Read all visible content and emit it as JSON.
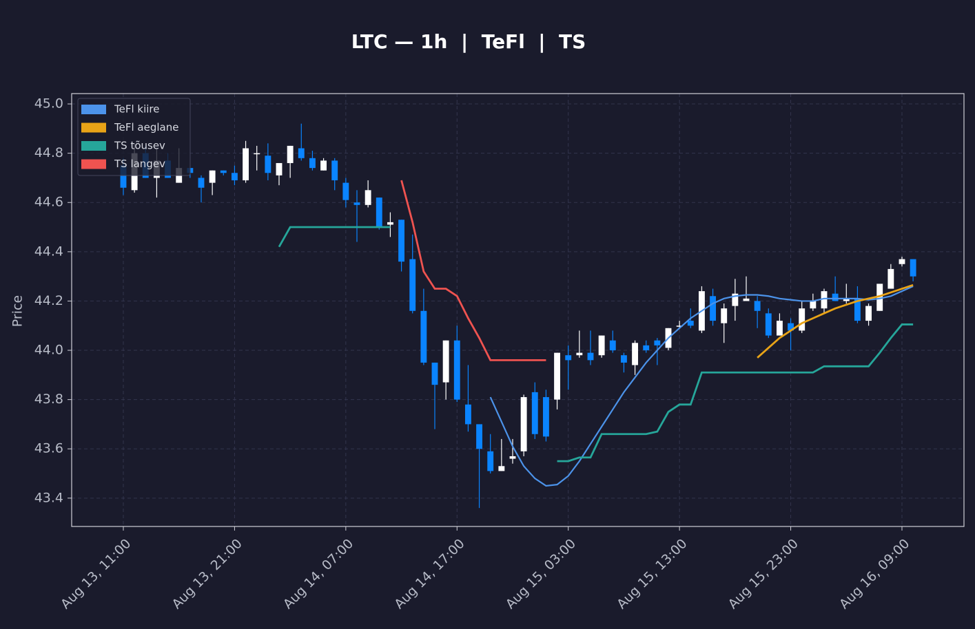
{
  "chart_data": {
    "type": "candlestick",
    "title": "LTC — 1h  |  TeFl  |  TS",
    "ylabel": "Price",
    "x": [
      "Aug 13, 11:00",
      "Aug 13, 12:00",
      "Aug 13, 13:00",
      "Aug 13, 14:00",
      "Aug 13, 15:00",
      "Aug 13, 16:00",
      "Aug 13, 17:00",
      "Aug 13, 18:00",
      "Aug 13, 19:00",
      "Aug 13, 20:00",
      "Aug 13, 21:00",
      "Aug 13, 22:00",
      "Aug 13, 23:00",
      "Aug 14, 00:00",
      "Aug 14, 01:00",
      "Aug 14, 02:00",
      "Aug 14, 03:00",
      "Aug 14, 04:00",
      "Aug 14, 05:00",
      "Aug 14, 06:00",
      "Aug 14, 07:00",
      "Aug 14, 08:00",
      "Aug 14, 09:00",
      "Aug 14, 10:00",
      "Aug 14, 11:00",
      "Aug 14, 12:00",
      "Aug 14, 13:00",
      "Aug 14, 14:00",
      "Aug 14, 15:00",
      "Aug 14, 16:00",
      "Aug 14, 17:00",
      "Aug 14, 18:00",
      "Aug 14, 19:00",
      "Aug 14, 20:00",
      "Aug 14, 21:00",
      "Aug 14, 22:00",
      "Aug 14, 23:00",
      "Aug 15, 00:00",
      "Aug 15, 01:00",
      "Aug 15, 02:00",
      "Aug 15, 03:00",
      "Aug 15, 04:00",
      "Aug 15, 05:00",
      "Aug 15, 06:00",
      "Aug 15, 07:00",
      "Aug 15, 08:00",
      "Aug 15, 09:00",
      "Aug 15, 10:00",
      "Aug 15, 11:00",
      "Aug 15, 12:00",
      "Aug 15, 13:00",
      "Aug 15, 14:00",
      "Aug 15, 15:00",
      "Aug 15, 16:00",
      "Aug 15, 17:00",
      "Aug 15, 18:00",
      "Aug 15, 19:00",
      "Aug 15, 20:00",
      "Aug 15, 21:00",
      "Aug 15, 22:00",
      "Aug 15, 23:00",
      "Aug 16, 00:00",
      "Aug 16, 01:00",
      "Aug 16, 02:00",
      "Aug 16, 03:00",
      "Aug 16, 04:00",
      "Aug 16, 05:00",
      "Aug 16, 06:00",
      "Aug 16, 07:00",
      "Aug 16, 08:00",
      "Aug 16, 09:00",
      "Aug 16, 10:00"
    ],
    "open": [
      44.75,
      44.65,
      44.8,
      44.7,
      44.77,
      44.68,
      44.74,
      44.7,
      44.68,
      44.73,
      44.72,
      44.69,
      44.8,
      44.79,
      44.71,
      44.76,
      44.82,
      44.78,
      44.73,
      44.77,
      44.68,
      44.6,
      44.59,
      44.62,
      44.51,
      44.53,
      44.37,
      44.16,
      43.95,
      43.87,
      44.04,
      43.78,
      43.7,
      43.59,
      43.51,
      43.56,
      43.59,
      43.83,
      43.81,
      43.8,
      43.98,
      43.98,
      43.99,
      43.98,
      44.04,
      43.98,
      43.94,
      44.02,
      44.04,
      44.01,
      44.1,
      44.12,
      44.08,
      44.22,
      44.11,
      44.18,
      44.2,
      44.2,
      44.15,
      44.06,
      44.11,
      44.08,
      44.17,
      44.17,
      44.23,
      44.2,
      44.21,
      44.12,
      44.16,
      44.25,
      44.35,
      44.37
    ],
    "high": [
      44.78,
      44.84,
      44.83,
      44.82,
      44.8,
      44.82,
      44.74,
      44.71,
      44.73,
      44.73,
      44.75,
      44.85,
      44.83,
      44.84,
      44.76,
      44.83,
      44.92,
      44.81,
      44.78,
      44.78,
      44.7,
      44.65,
      44.69,
      44.62,
      44.56,
      44.53,
      44.47,
      44.25,
      43.95,
      44.04,
      44.1,
      43.94,
      43.7,
      43.66,
      43.64,
      43.64,
      43.82,
      43.87,
      43.84,
      43.99,
      44.02,
      44.08,
      44.08,
      44.06,
      44.08,
      43.99,
      44.04,
      44.04,
      44.05,
      44.09,
      44.12,
      44.17,
      44.26,
      44.25,
      44.19,
      44.29,
      44.3,
      44.22,
      44.17,
      44.15,
      44.13,
      44.2,
      44.23,
      44.25,
      44.3,
      44.27,
      44.26,
      44.19,
      44.26,
      44.35,
      44.38,
      44.37
    ],
    "low": [
      44.63,
      44.64,
      44.7,
      44.62,
      44.7,
      44.68,
      44.7,
      44.6,
      44.63,
      44.71,
      44.67,
      44.68,
      44.73,
      44.69,
      44.67,
      44.7,
      44.77,
      44.73,
      44.73,
      44.65,
      44.58,
      44.44,
      44.58,
      44.49,
      44.46,
      44.32,
      44.15,
      43.94,
      43.68,
      43.8,
      43.79,
      43.67,
      43.36,
      43.5,
      43.51,
      43.54,
      43.57,
      43.64,
      43.63,
      43.76,
      43.84,
      43.97,
      43.94,
      43.97,
      43.99,
      43.91,
      43.9,
      43.99,
      43.94,
      44.0,
      44.09,
      44.09,
      44.07,
      44.1,
      44.03,
      44.12,
      44.2,
      44.09,
      44.05,
      44.06,
      44.0,
      44.07,
      44.16,
      44.15,
      44.2,
      44.19,
      44.11,
      44.1,
      44.16,
      44.25,
      44.34,
      44.28
    ],
    "close": [
      44.66,
      44.8,
      44.7,
      44.77,
      44.7,
      44.74,
      44.72,
      44.66,
      44.73,
      44.72,
      44.69,
      44.82,
      44.8,
      44.72,
      44.76,
      44.83,
      44.78,
      44.74,
      44.77,
      44.69,
      44.61,
      44.59,
      44.65,
      44.5,
      44.52,
      44.36,
      44.16,
      43.95,
      43.86,
      44.04,
      43.8,
      43.7,
      43.6,
      43.51,
      43.53,
      43.57,
      43.81,
      43.66,
      43.65,
      43.99,
      43.96,
      43.99,
      43.96,
      44.06,
      44.0,
      43.95,
      44.03,
      44.0,
      44.02,
      44.09,
      44.1,
      44.1,
      44.24,
      44.12,
      44.17,
      44.23,
      44.21,
      44.16,
      44.06,
      44.12,
      44.08,
      44.17,
      44.2,
      44.24,
      44.2,
      44.21,
      44.12,
      44.18,
      44.27,
      44.33,
      44.37,
      44.3
    ],
    "up_color": "#ffffff",
    "down_color": "#0a84ff",
    "series": [
      {
        "name": "TeFl kiire",
        "color": "#4c93ea",
        "values": [
          null,
          null,
          null,
          null,
          null,
          null,
          null,
          null,
          null,
          null,
          null,
          null,
          null,
          null,
          null,
          null,
          null,
          null,
          null,
          null,
          null,
          null,
          null,
          null,
          null,
          null,
          null,
          null,
          null,
          null,
          null,
          null,
          null,
          43.81,
          43.71,
          43.61,
          43.53,
          43.48,
          43.45,
          43.455,
          43.49,
          43.55,
          43.62,
          43.69,
          43.76,
          43.83,
          43.89,
          43.95,
          44.0,
          44.05,
          44.09,
          44.13,
          44.16,
          44.19,
          44.21,
          44.22,
          44.225,
          44.225,
          44.22,
          44.21,
          44.205,
          44.2,
          44.2,
          44.21,
          44.21,
          44.21,
          44.21,
          44.205,
          44.21,
          44.22,
          44.24,
          44.26
        ]
      },
      {
        "name": "TeFl aeglane",
        "color": "#e8a317",
        "values": [
          null,
          null,
          null,
          null,
          null,
          null,
          null,
          null,
          null,
          null,
          null,
          null,
          null,
          null,
          null,
          null,
          null,
          null,
          null,
          null,
          null,
          null,
          null,
          null,
          null,
          null,
          null,
          null,
          null,
          null,
          null,
          null,
          null,
          null,
          null,
          null,
          null,
          null,
          null,
          null,
          null,
          null,
          null,
          null,
          null,
          null,
          null,
          null,
          null,
          null,
          null,
          null,
          null,
          null,
          null,
          null,
          null,
          43.97,
          44.01,
          44.05,
          44.08,
          44.11,
          44.13,
          44.15,
          44.17,
          44.185,
          44.2,
          44.21,
          44.22,
          44.235,
          44.25,
          44.265
        ]
      },
      {
        "name": "TS tõusev",
        "color": "#26a69a",
        "values": [
          null,
          null,
          null,
          null,
          null,
          null,
          null,
          null,
          null,
          null,
          null,
          null,
          null,
          null,
          44.42,
          44.5,
          44.5,
          44.5,
          44.5,
          44.5,
          44.5,
          44.5,
          44.5,
          44.5,
          44.5,
          null,
          null,
          null,
          null,
          null,
          null,
          null,
          null,
          null,
          null,
          null,
          null,
          null,
          null,
          43.55,
          43.55,
          43.565,
          43.565,
          43.66,
          43.66,
          43.66,
          43.66,
          43.66,
          43.67,
          43.75,
          43.78,
          43.78,
          43.91,
          43.91,
          43.91,
          43.91,
          43.91,
          43.91,
          43.91,
          43.91,
          43.91,
          43.91,
          43.91,
          43.935,
          43.935,
          43.935,
          43.935,
          43.935,
          43.99,
          44.05,
          44.105,
          44.105
        ]
      },
      {
        "name": "TS langev",
        "color": "#ef5350",
        "values": [
          null,
          null,
          null,
          null,
          null,
          null,
          null,
          null,
          null,
          null,
          null,
          null,
          null,
          null,
          null,
          null,
          null,
          null,
          null,
          null,
          null,
          null,
          null,
          null,
          null,
          44.69,
          44.52,
          44.32,
          44.25,
          44.25,
          44.22,
          44.13,
          44.05,
          43.96,
          43.96,
          43.96,
          43.96,
          43.96,
          43.96,
          null,
          null,
          null,
          null,
          null,
          null,
          null,
          null,
          null,
          null,
          null,
          null,
          null,
          null,
          null,
          null,
          null,
          null,
          null,
          null,
          null,
          null,
          null,
          null,
          null,
          null,
          null,
          null,
          null,
          null,
          null,
          null,
          null
        ]
      }
    ],
    "ylim": [
      43.285,
      45.042
    ],
    "yticks": [
      43.4,
      43.6,
      43.8,
      {
        "value": 44.0,
        "label": "44.0"
      },
      44.2,
      44.4,
      44.6,
      44.8,
      {
        "value": 45.0,
        "label": "45.0"
      }
    ],
    "xticks": [
      "Aug 13, 11:00",
      "Aug 13, 21:00",
      "Aug 14, 07:00",
      "Aug 14, 17:00",
      "Aug 15, 03:00",
      "Aug 15, 13:00",
      "Aug 15, 23:00",
      "Aug 16, 09:00"
    ],
    "grid": true,
    "legend": "upper-left"
  }
}
